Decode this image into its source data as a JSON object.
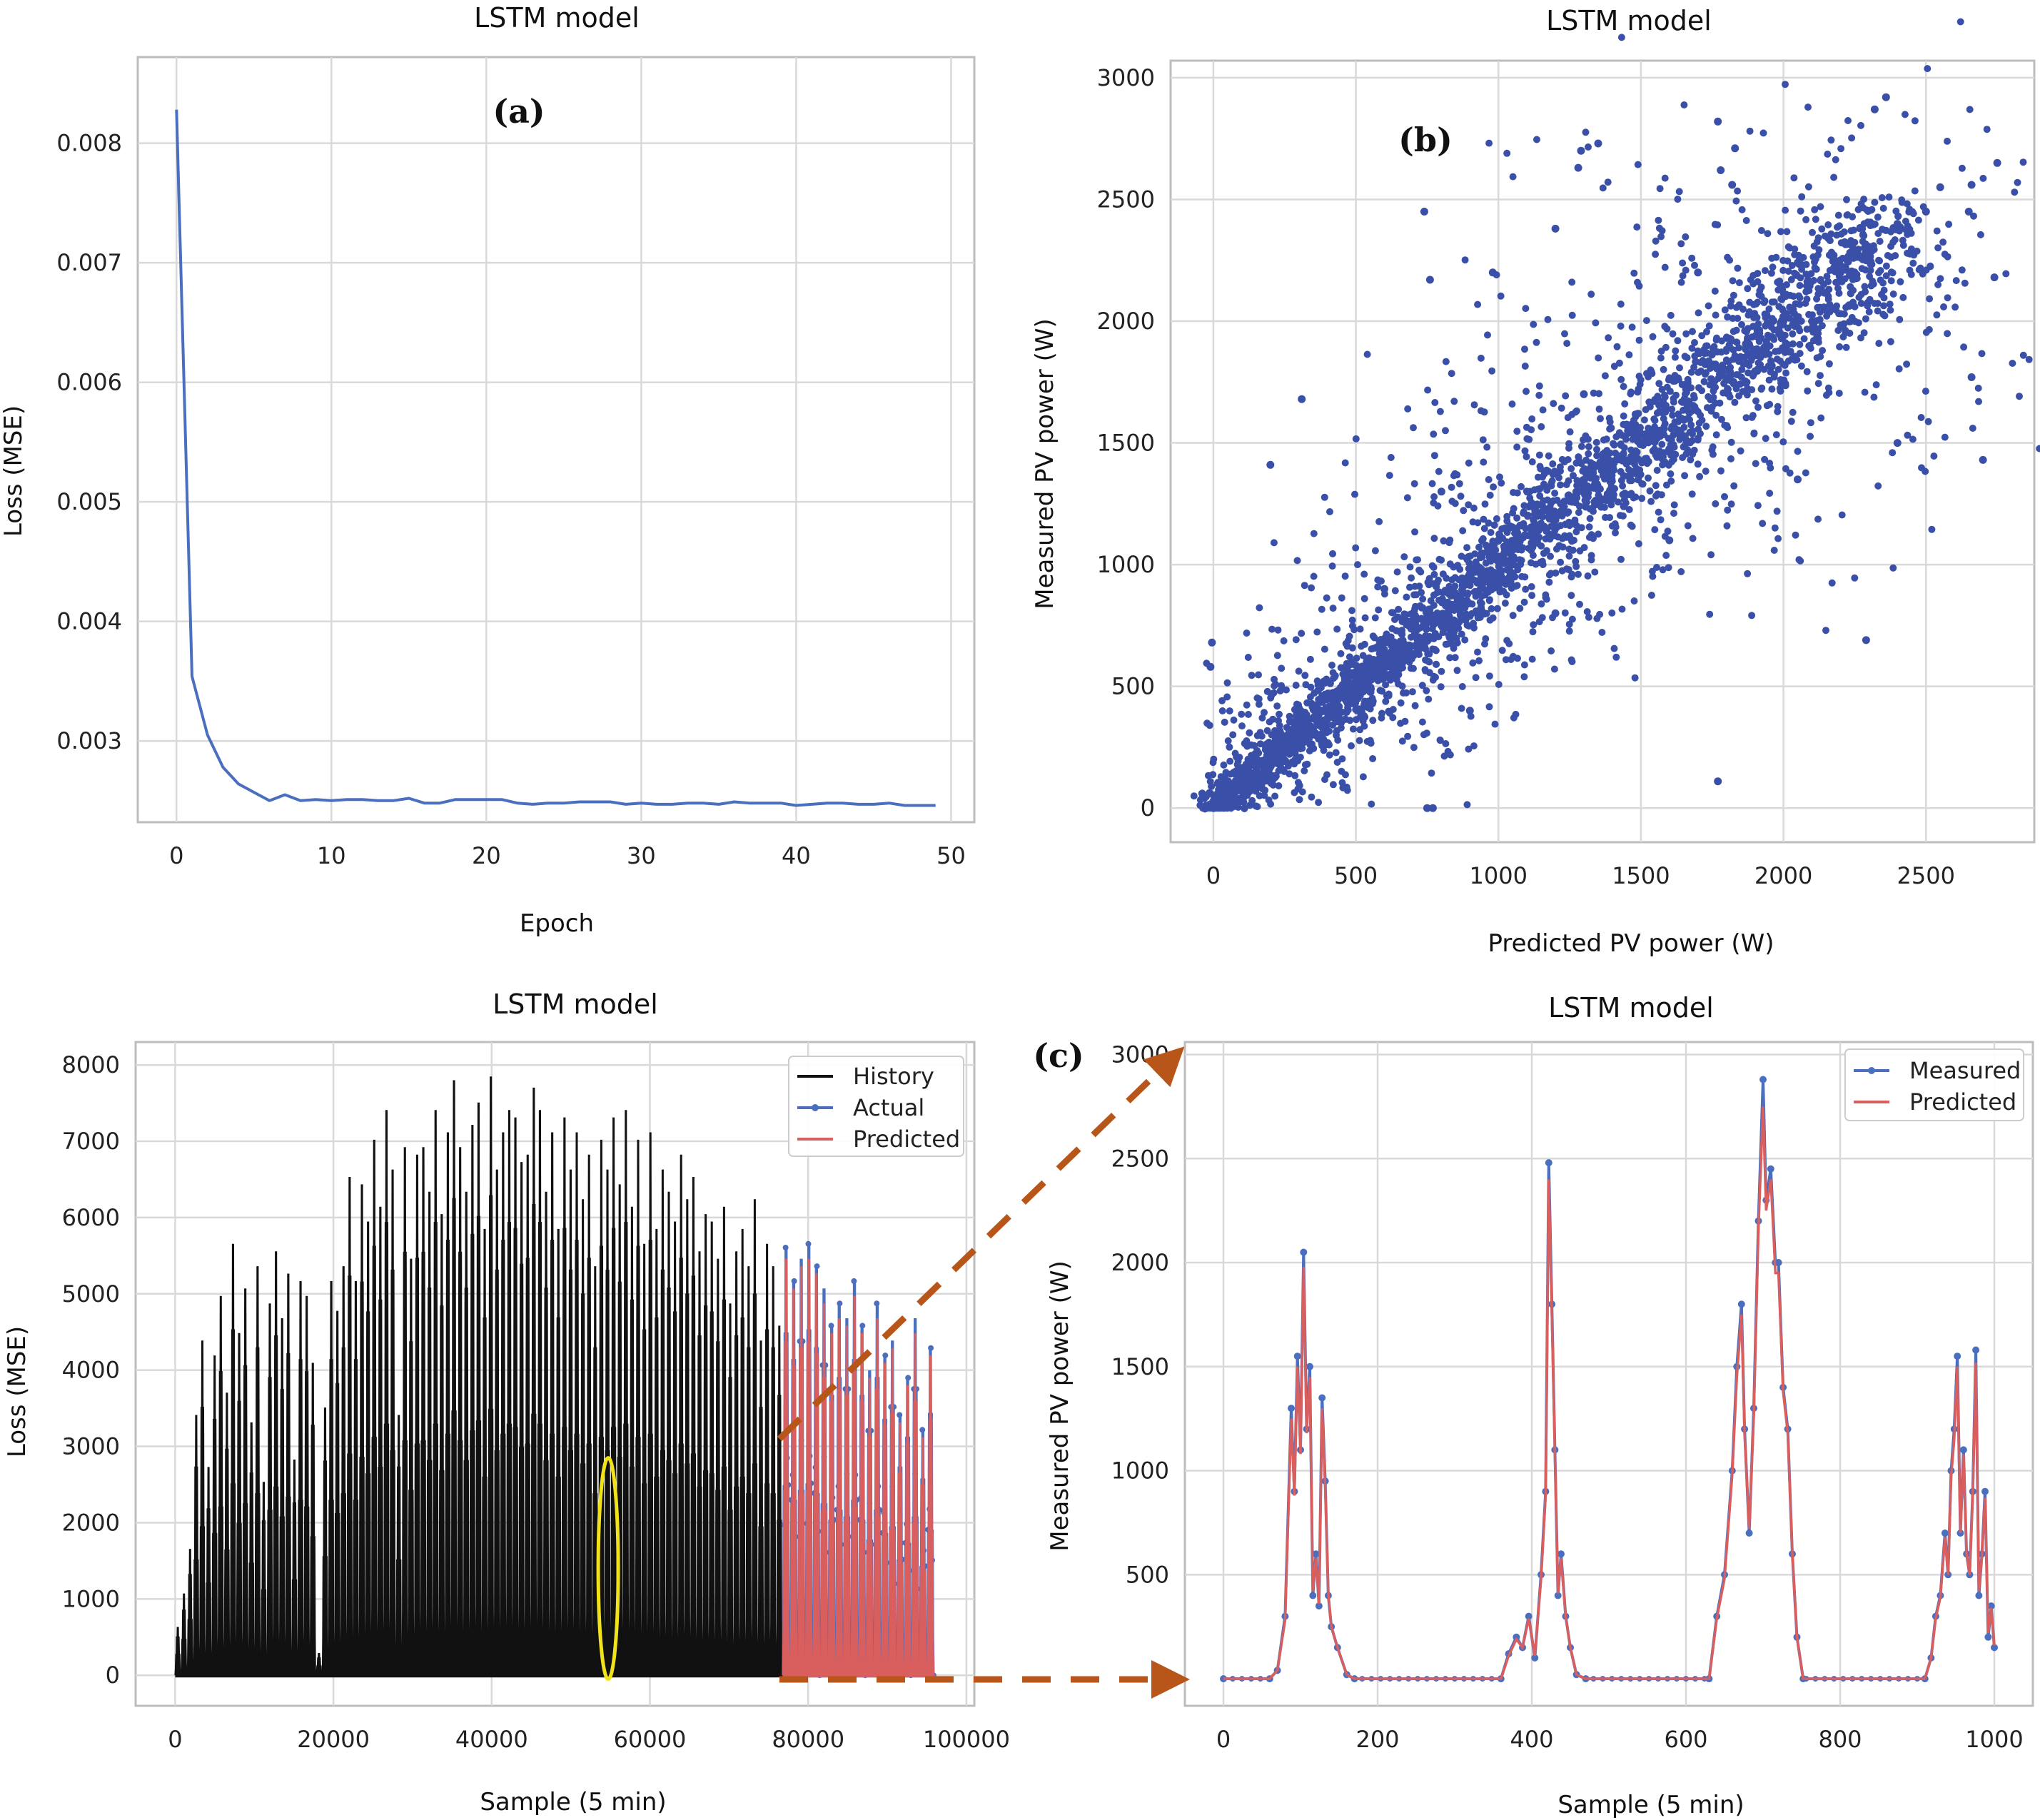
{
  "colors": {
    "blue": "#4a6fbf",
    "scatter_blue": "#3a50a8",
    "black": "#111111",
    "red": "#d95f5f",
    "grid": "#d9d9d9",
    "axis": "#bdbdbd",
    "arrow": "#b8561a",
    "highlight": "#f2e21a"
  },
  "chart_data": [
    {
      "id": "a",
      "type": "line",
      "panel_label": "(a)",
      "title": "LSTM model",
      "xlabel": "Epoch",
      "ylabel": "Loss (MSE)",
      "xlim": [
        -2.5,
        51.5
      ],
      "ylim": [
        0.00232,
        0.00872
      ],
      "xticks": [
        0,
        10,
        20,
        30,
        40,
        50
      ],
      "yticks": [
        0.003,
        0.004,
        0.005,
        0.006,
        0.007,
        0.008
      ],
      "ytick_labels": [
        "0.003",
        "0.004",
        "0.005",
        "0.006",
        "0.007",
        "0.008"
      ],
      "grid": true,
      "series": [
        {
          "values": [
            0.00828,
            0.00354,
            0.00305,
            0.00278,
            0.00264,
            0.00257,
            0.0025,
            0.00255,
            0.0025,
            0.00251,
            0.0025,
            0.00251,
            0.00251,
            0.0025,
            0.0025,
            0.00252,
            0.00248,
            0.00248,
            0.00251,
            0.00251,
            0.00251,
            0.00251,
            0.00248,
            0.00247,
            0.00248,
            0.00248,
            0.00249,
            0.00249,
            0.00249,
            0.00247,
            0.00248,
            0.00247,
            0.00247,
            0.00248,
            0.00248,
            0.00247,
            0.00249,
            0.00248,
            0.00248,
            0.00248,
            0.00246,
            0.00247,
            0.00248,
            0.00248,
            0.00247,
            0.00247,
            0.00248,
            0.00246,
            0.00246,
            0.00246
          ]
        }
      ]
    },
    {
      "id": "b",
      "type": "scatter",
      "panel_label": "(b)",
      "title": "LSTM model",
      "xlabel": "Predicted  PV power (W)",
      "ylabel": "Measured PV power (W)",
      "xlim": [
        -150,
        2880
      ],
      "ylim": [
        -140,
        3070
      ],
      "xticks": [
        0,
        500,
        1000,
        1500,
        2000,
        2500
      ],
      "yticks": [
        0,
        500,
        1000,
        1500,
        2000,
        2500,
        3000
      ],
      "grid": true,
      "points_note": "dense cloud along y = x from 0 to ~2400 W with wide scatter",
      "sample_points": [
        [
          0,
          0
        ],
        [
          -5,
          680
        ],
        [
          -10,
          580
        ],
        [
          200,
          1410
        ],
        [
          310,
          1680
        ],
        [
          740,
          2450
        ],
        [
          760,
          2170
        ],
        [
          980,
          2200
        ],
        [
          1350,
          2730
        ],
        [
          1290,
          2700
        ],
        [
          1280,
          2630
        ],
        [
          1200,
          2380
        ],
        [
          1770,
          2820
        ],
        [
          1780,
          2620
        ],
        [
          1830,
          2710
        ],
        [
          1820,
          2560
        ],
        [
          2320,
          2870
        ],
        [
          2360,
          2920
        ],
        [
          2750,
          2650
        ],
        [
          2660,
          2560
        ],
        [
          2740,
          2180
        ],
        [
          2660,
          1770
        ],
        [
          2700,
          1430
        ],
        [
          2290,
          690
        ],
        [
          1770,
          110
        ],
        [
          750,
          0
        ],
        [
          770,
          0
        ],
        [
          1440,
          1240
        ],
        [
          1000,
          1100
        ],
        [
          1500,
          1500
        ],
        [
          1800,
          1800
        ],
        [
          2000,
          2000
        ],
        [
          2200,
          2200
        ],
        [
          2400,
          2400
        ],
        [
          1200,
          800
        ],
        [
          800,
          1300
        ],
        [
          1600,
          1100
        ],
        [
          1300,
          1700
        ],
        [
          2050,
          1350
        ],
        [
          900,
          400
        ],
        [
          600,
          900
        ],
        [
          1700,
          2200
        ],
        [
          2400,
          1500
        ],
        [
          2500,
          2450
        ],
        [
          2650,
          2450
        ],
        [
          2550,
          2550
        ]
      ]
    },
    {
      "id": "c1",
      "type": "line",
      "panel_label": "(c)",
      "title": "LSTM model",
      "xlabel": "Sample (5 min)",
      "ylabel": "Loss (MSE)",
      "xlim": [
        -5000,
        101000
      ],
      "ylim": [
        -400,
        8300
      ],
      "xticks": [
        0,
        20000,
        40000,
        60000,
        80000,
        100000
      ],
      "yticks": [
        0,
        1000,
        2000,
        3000,
        4000,
        5000,
        6000,
        7000,
        8000
      ],
      "grid": true,
      "legend_position": "top-right",
      "legend": [
        "History",
        "Actual",
        "Predicted"
      ],
      "series": [
        {
          "name": "History",
          "x_range": [
            0,
            76800
          ],
          "daily_peaks": [
            650,
            1100,
            1700,
            3500,
            4500,
            2800,
            4300,
            5100,
            3800,
            5800,
            4600,
            5200,
            3400,
            5500,
            2600,
            5000,
            5700,
            4800,
            5400,
            2900,
            5300,
            5100,
            4200,
            300,
            3600,
            5300,
            4900,
            5500,
            6700,
            5300,
            6600,
            6100,
            7200,
            6300,
            7600,
            6800,
            3500,
            7100,
            5600,
            7000,
            7100,
            6500,
            7600,
            6200,
            7300,
            8000,
            7100,
            6500,
            7400,
            7700,
            6000,
            8050,
            6800,
            7300,
            7600,
            7500,
            6900,
            7000,
            7900,
            7600,
            6500,
            7300,
            6000,
            7500,
            6800,
            7300,
            6400,
            7000,
            5500,
            7200,
            6800,
            7500,
            6600,
            7600,
            6300,
            7200,
            5800,
            7300,
            6000,
            6800,
            6500,
            6100,
            7000,
            6400,
            6700,
            5700,
            6200,
            6100,
            5600,
            6300,
            5000,
            5700,
            6000,
            5500,
            6400,
            4500,
            5800,
            5500,
            4700
          ]
        },
        {
          "name": "Actual",
          "x_range": [
            76800,
            96000
          ],
          "daily_peaks": [
            5750,
            5300,
            5600,
            5800,
            5500,
            5200,
            4700,
            5000,
            4800,
            5300,
            4700,
            4100,
            5000,
            4300,
            4500,
            3500,
            4000,
            4800,
            3300,
            4400
          ]
        },
        {
          "name": "Predicted",
          "x_range": [
            76800,
            96000
          ],
          "daily_peaks": [
            5600,
            5200,
            5500,
            5600,
            5400,
            5000,
            4600,
            4800,
            4700,
            5100,
            4600,
            4000,
            4800,
            4200,
            4400,
            3400,
            3900,
            4600,
            3200,
            4300
          ]
        }
      ]
    },
    {
      "id": "c2",
      "type": "line",
      "title": "LSTM model",
      "xlabel": "Sample (5 min)",
      "ylabel": "Measured PV power (W)",
      "xlim": [
        -50,
        1050
      ],
      "ylim": [
        -130,
        3060
      ],
      "xticks": [
        0,
        200,
        400,
        600,
        800,
        1000
      ],
      "yticks": [
        500,
        1000,
        1500,
        2000,
        2500,
        3000
      ],
      "grid": true,
      "legend_position": "top-right",
      "legend": [
        "Measured",
        "Predicted"
      ],
      "series": [
        {
          "name": "Measured",
          "points": [
            [
              0,
              0
            ],
            [
              60,
              0
            ],
            [
              70,
              40
            ],
            [
              80,
              300
            ],
            [
              88,
              1300
            ],
            [
              92,
              900
            ],
            [
              96,
              1550
            ],
            [
              100,
              1100
            ],
            [
              104,
              2050
            ],
            [
              108,
              1200
            ],
            [
              112,
              1500
            ],
            [
              116,
              400
            ],
            [
              120,
              600
            ],
            [
              124,
              350
            ],
            [
              128,
              1350
            ],
            [
              132,
              950
            ],
            [
              136,
              400
            ],
            [
              140,
              250
            ],
            [
              148,
              150
            ],
            [
              160,
              20
            ],
            [
              170,
              0
            ],
            [
              360,
              0
            ],
            [
              370,
              120
            ],
            [
              380,
              200
            ],
            [
              388,
              150
            ],
            [
              396,
              300
            ],
            [
              404,
              100
            ],
            [
              412,
              500
            ],
            [
              418,
              900
            ],
            [
              422,
              2480
            ],
            [
              426,
              1800
            ],
            [
              430,
              1100
            ],
            [
              434,
              400
            ],
            [
              438,
              600
            ],
            [
              444,
              300
            ],
            [
              450,
              150
            ],
            [
              458,
              20
            ],
            [
              470,
              0
            ],
            [
              630,
              0
            ],
            [
              640,
              300
            ],
            [
              650,
              500
            ],
            [
              660,
              1000
            ],
            [
              666,
              1500
            ],
            [
              672,
              1800
            ],
            [
              676,
              1200
            ],
            [
              682,
              700
            ],
            [
              688,
              1300
            ],
            [
              694,
              2200
            ],
            [
              700,
              2880
            ],
            [
              704,
              2300
            ],
            [
              710,
              2450
            ],
            [
              716,
              2000
            ],
            [
              720,
              2000
            ],
            [
              726,
              1400
            ],
            [
              732,
              1200
            ],
            [
              738,
              600
            ],
            [
              744,
              200
            ],
            [
              752,
              0
            ],
            [
              910,
              0
            ],
            [
              918,
              100
            ],
            [
              924,
              300
            ],
            [
              930,
              400
            ],
            [
              936,
              700
            ],
            [
              940,
              500
            ],
            [
              944,
              1000
            ],
            [
              948,
              1200
            ],
            [
              952,
              1550
            ],
            [
              956,
              700
            ],
            [
              960,
              1100
            ],
            [
              964,
              600
            ],
            [
              968,
              500
            ],
            [
              972,
              900
            ],
            [
              976,
              1580
            ],
            [
              980,
              400
            ],
            [
              984,
              600
            ],
            [
              988,
              900
            ],
            [
              992,
              200
            ],
            [
              996,
              350
            ],
            [
              1000,
              150
            ]
          ]
        },
        {
          "name": "Predicted",
          "points": [
            [
              0,
              0
            ],
            [
              60,
              0
            ],
            [
              70,
              40
            ],
            [
              80,
              280
            ],
            [
              88,
              1250
            ],
            [
              92,
              880
            ],
            [
              96,
              1500
            ],
            [
              100,
              1080
            ],
            [
              104,
              1980
            ],
            [
              108,
              1180
            ],
            [
              112,
              1450
            ],
            [
              116,
              420
            ],
            [
              120,
              580
            ],
            [
              124,
              360
            ],
            [
              128,
              1300
            ],
            [
              132,
              920
            ],
            [
              136,
              410
            ],
            [
              140,
              250
            ],
            [
              148,
              150
            ],
            [
              160,
              20
            ],
            [
              170,
              0
            ],
            [
              360,
              0
            ],
            [
              370,
              110
            ],
            [
              380,
              190
            ],
            [
              388,
              150
            ],
            [
              396,
              290
            ],
            [
              404,
              110
            ],
            [
              412,
              480
            ],
            [
              418,
              880
            ],
            [
              422,
              2400
            ],
            [
              426,
              1750
            ],
            [
              430,
              1080
            ],
            [
              434,
              410
            ],
            [
              438,
              580
            ],
            [
              444,
              300
            ],
            [
              450,
              150
            ],
            [
              458,
              20
            ],
            [
              470,
              0
            ],
            [
              630,
              0
            ],
            [
              640,
              290
            ],
            [
              650,
              480
            ],
            [
              660,
              980
            ],
            [
              666,
              1450
            ],
            [
              672,
              1750
            ],
            [
              676,
              1180
            ],
            [
              682,
              720
            ],
            [
              688,
              1260
            ],
            [
              694,
              2150
            ],
            [
              700,
              2750
            ],
            [
              704,
              2250
            ],
            [
              710,
              2400
            ],
            [
              716,
              1950
            ],
            [
              720,
              1950
            ],
            [
              726,
              1380
            ],
            [
              732,
              1180
            ],
            [
              738,
              600
            ],
            [
              744,
              200
            ],
            [
              752,
              0
            ],
            [
              910,
              0
            ],
            [
              918,
              100
            ],
            [
              924,
              290
            ],
            [
              930,
              390
            ],
            [
              936,
              680
            ],
            [
              940,
              500
            ],
            [
              944,
              970
            ],
            [
              948,
              1150
            ],
            [
              952,
              1500
            ],
            [
              956,
              700
            ],
            [
              960,
              1080
            ],
            [
              964,
              600
            ],
            [
              968,
              500
            ],
            [
              972,
              880
            ],
            [
              976,
              1520
            ],
            [
              980,
              420
            ],
            [
              984,
              590
            ],
            [
              988,
              870
            ],
            [
              992,
              220
            ],
            [
              996,
              340
            ],
            [
              1000,
              160
            ]
          ]
        }
      ]
    }
  ]
}
